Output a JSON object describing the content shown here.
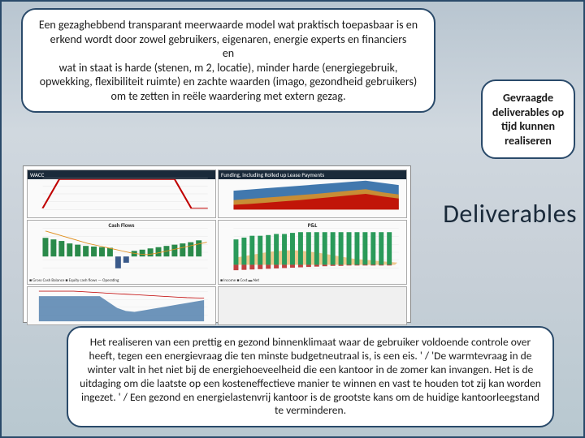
{
  "top_bubble": "Een gezaghebbend transparant meerwaarde model wat praktisch toepasbaar is en erkend wordt door zowel gebruikers, eigenaren, energie experts en financiers\nen\nwat in staat is harde (stenen, m 2, locatie), minder harde (energiegebruik, opwekking, flexibiliteit ruimte) en zachte waarden (imago, gezondheid gebruikers) om te zetten in reële waardering met extern gezag.",
  "right_bubble": "Gevraagde deliverables op tijd kunnen realiseren",
  "deliverables_heading": "Deliverables",
  "bottom_bubble": "Het realiseren van een prettig en gezond binnenklimaat waar de gebruiker voldoende controle over heeft, tegen een energievraag die ten minste budgetneutraal is, is een eis. ' / 'De warmtevraag in de winter valt in het niet bij de energiehoeveelheid die een kantoor in de zomer kan invangen. Het is de uitdaging om die laatste op een kosteneffectieve manier te winnen en vast te houden tot zij kan worden ingezet. ' / Een gezond en energielastenvrij kantoor is de grootste kans om de huidige kantoorleegstand te verminderen.",
  "charts": {
    "c1": {
      "header": "WACC",
      "type": "line",
      "header_bg": "#1a2a3a",
      "line_color": "#c00000",
      "grid_color": "#d0d0d0",
      "bg": "#ffffff",
      "ylim": [
        0,
        5000
      ],
      "points": [
        200,
        4800,
        4800,
        4800,
        4800,
        4800,
        4800,
        4800,
        4800,
        200,
        200
      ]
    },
    "c2": {
      "header": "Funding, including Rolled up Lease Payments",
      "type": "area-multi",
      "header_bg": "#1a2a3a",
      "bg": "#ffffff",
      "colors": [
        "#c00000",
        "#e09020",
        "#2060a0"
      ],
      "ylim": [
        0,
        100
      ],
      "series": [
        [
          15,
          18,
          22,
          26,
          30,
          35,
          40,
          45,
          50,
          42,
          35
        ],
        [
          30,
          34,
          38,
          42,
          46,
          50,
          55,
          60,
          65,
          55,
          48
        ],
        [
          60,
          64,
          68,
          72,
          76,
          80,
          84,
          88,
          92,
          85,
          78
        ]
      ]
    },
    "c3": {
      "title": "Cash Flows",
      "type": "bar-line",
      "bg": "#ffffff",
      "bar_pos_color": "#2a8a4a",
      "bar_neg_color": "#3a5a8a",
      "line_color": "#e09020",
      "grid_color": "#d8d8d8",
      "ylim": [
        -5000,
        9000
      ],
      "bars": [
        6000,
        5500,
        5000,
        4200,
        3800,
        3400,
        3200,
        3000,
        2800,
        -3800,
        -2000,
        1800,
        2200,
        2600,
        3000,
        3400,
        3800,
        4200,
        4600,
        5200
      ],
      "line": [
        8200,
        7400,
        6600,
        5800,
        5000,
        4200,
        3600,
        3000,
        2400,
        1800,
        1200,
        800,
        600,
        1000,
        1600,
        2200,
        2800,
        3400,
        4000,
        4600
      ]
    },
    "c4": {
      "title": "P&L",
      "type": "bar-line-combo",
      "bg": "#ffffff",
      "bar_up_color": "#2a9a5a",
      "bar_down_color": "#c04040",
      "area_color": "#e8a848",
      "grid_color": "#d8d8d8",
      "ylim": [
        -2,
        10
      ],
      "bars_up": [
        7,
        7.5,
        8,
        8,
        8.2,
        8.5,
        8.5,
        8.8,
        9,
        9,
        9,
        9,
        9,
        9,
        9,
        9,
        9,
        9,
        9,
        9
      ],
      "bars_down": [
        -1.5,
        -1.4,
        -1.3,
        -1.2,
        -1.1,
        -1,
        -0.9,
        -0.8,
        -0.7,
        -0.6,
        -0.5,
        -0.4,
        -0.3,
        -0.3,
        -0.2,
        -0.2,
        -0.2,
        -0.2,
        -0.2,
        -0.2
      ],
      "area": [
        2,
        2.4,
        2.8,
        3.2,
        3.6,
        3.8,
        4,
        4,
        3.8,
        3.5,
        3.2,
        2.8,
        2.4,
        2.0,
        1.6,
        1.4,
        1.2,
        1.0,
        0.8,
        0.6
      ]
    },
    "c5": {
      "type": "area-step",
      "bg": "#ffffff",
      "fill_color": "#4a7aaa",
      "line_top_color": "#c00000",
      "grid_color": "#d8d8d8",
      "ylim": [
        0,
        6000
      ],
      "area": [
        4800,
        4800,
        4800,
        4800,
        4800,
        4800,
        4800,
        4800,
        3600,
        2400,
        1800,
        1600,
        1900,
        2200,
        2500,
        2800,
        3100,
        3400,
        3700,
        4000
      ],
      "topline": [
        5800,
        5800,
        5800,
        5800,
        5800,
        5700,
        5600,
        5500,
        5400,
        5300,
        5200,
        5100,
        5000,
        4900,
        4800,
        4700,
        4600,
        4500,
        4450,
        4400
      ]
    },
    "legend_c3": "■ Gross Cash Balance  ■ Equity cash flows  — Operating",
    "legend_c4": "■ Income  ■ Cost  ▬ Net"
  }
}
